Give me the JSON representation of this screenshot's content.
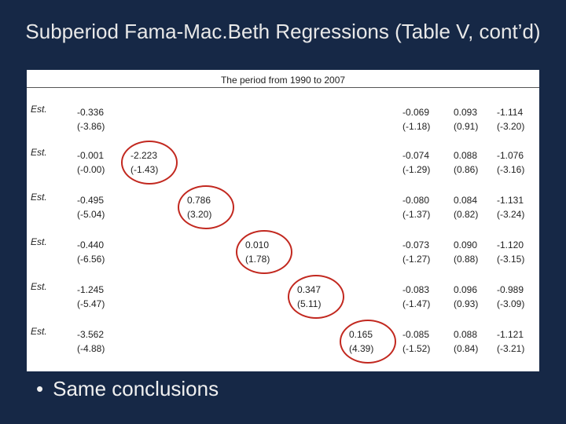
{
  "slide": {
    "title": "Subperiod Fama-Mac.Beth Regressions (Table V, cont’d)",
    "table_title": "The period from 1990 to 2007",
    "est_label": "Est.",
    "bullet": "Same conclusions",
    "circle_color": "#c2281f"
  },
  "rows": [
    {
      "c1": [
        "-0.336",
        "(-3.86)"
      ],
      "diag": null,
      "r1": [
        "-0.069",
        "(-1.18)"
      ],
      "r2": [
        "0.093",
        "(0.91)"
      ],
      "r3": [
        "-1.114",
        "(-3.20)"
      ]
    },
    {
      "c1": [
        "-0.001",
        "(-0.00)"
      ],
      "diag": [
        "-2.223",
        "(-1.43)"
      ],
      "r1": [
        "-0.074",
        "(-1.29)"
      ],
      "r2": [
        "0.088",
        "(0.86)"
      ],
      "r3": [
        "-1.076",
        "(-3.16)"
      ]
    },
    {
      "c1": [
        "-0.495",
        "(-5.04)"
      ],
      "diag": [
        "0.786",
        "(3.20)"
      ],
      "r1": [
        "-0.080",
        "(-1.37)"
      ],
      "r2": [
        "0.084",
        "(0.82)"
      ],
      "r3": [
        "-1.131",
        "(-3.24)"
      ]
    },
    {
      "c1": [
        "-0.440",
        "(-6.56)"
      ],
      "diag": [
        "0.010",
        "(1.78)"
      ],
      "r1": [
        "-0.073",
        "(-1.27)"
      ],
      "r2": [
        "0.090",
        "(0.88)"
      ],
      "r3": [
        "-1.120",
        "(-3.15)"
      ]
    },
    {
      "c1": [
        "-1.245",
        "(-5.47)"
      ],
      "diag": [
        "0.347",
        "(5.11)"
      ],
      "r1": [
        "-0.083",
        "(-1.47)"
      ],
      "r2": [
        "0.096",
        "(0.93)"
      ],
      "r3": [
        "-0.989",
        "(-3.09)"
      ]
    },
    {
      "c1": [
        "-3.562",
        "(-4.88)"
      ],
      "diag": [
        "0.165",
        "(4.39)"
      ],
      "r1": [
        "-0.085",
        "(-1.52)"
      ],
      "r2": [
        "0.088",
        "(0.84)"
      ],
      "r3": [
        "-1.121",
        "(-3.21)"
      ]
    }
  ]
}
